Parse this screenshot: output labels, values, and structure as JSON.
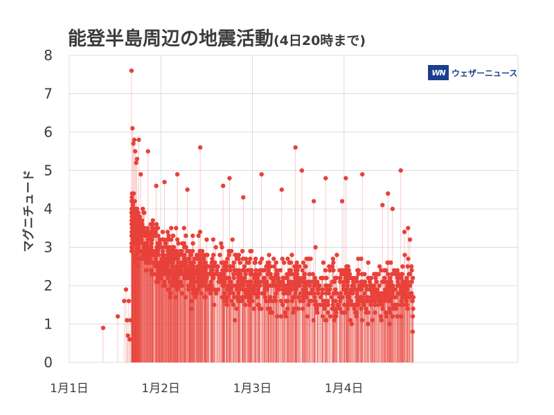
{
  "header": {
    "title": "能登半島周辺の地震活動",
    "subtitle": "(4日20時まで)"
  },
  "logo": {
    "mark": "WN",
    "text": "ウェザーニュース"
  },
  "chart_data": {
    "type": "scatter",
    "style": "stem",
    "title": "能登半島周辺の地震活動(4日20時まで)",
    "ylabel": "マグニチュード",
    "xlabel": "",
    "ylim": [
      0,
      8
    ],
    "yticks": [
      "0",
      "1",
      "2",
      "3",
      "4",
      "5",
      "6",
      "7",
      "8"
    ],
    "xlim": [
      0,
      4.9
    ],
    "xticks": [
      {
        "value": 0,
        "label": "1月1日"
      },
      {
        "value": 1,
        "label": "1月2日"
      },
      {
        "value": 2,
        "label": "1月3日"
      },
      {
        "value": 3,
        "label": "1月4日"
      }
    ],
    "grid": true,
    "color": "#e8413a",
    "x_unit": "days since 1月1日 0時",
    "notable_points": [
      {
        "x": 0.37,
        "y": 0.9
      },
      {
        "x": 0.53,
        "y": 1.2
      },
      {
        "x": 0.6,
        "y": 1.6
      },
      {
        "x": 0.62,
        "y": 1.9
      },
      {
        "x": 0.63,
        "y": 1.1
      },
      {
        "x": 0.64,
        "y": 0.7
      },
      {
        "x": 0.65,
        "y": 1.6
      },
      {
        "x": 0.66,
        "y": 0.6
      },
      {
        "x": 0.67,
        "y": 1.1
      },
      {
        "x": 0.68,
        "y": 7.6
      },
      {
        "x": 0.69,
        "y": 6.1
      },
      {
        "x": 0.7,
        "y": 5.7
      },
      {
        "x": 0.71,
        "y": 5.8
      },
      {
        "x": 0.72,
        "y": 5.5
      },
      {
        "x": 0.73,
        "y": 5.2
      },
      {
        "x": 0.74,
        "y": 5.3
      },
      {
        "x": 0.76,
        "y": 5.8
      },
      {
        "x": 0.78,
        "y": 4.9
      },
      {
        "x": 0.86,
        "y": 5.5
      },
      {
        "x": 0.95,
        "y": 4.6
      },
      {
        "x": 1.04,
        "y": 4.7
      },
      {
        "x": 1.18,
        "y": 4.9
      },
      {
        "x": 1.29,
        "y": 4.5
      },
      {
        "x": 1.43,
        "y": 5.6
      },
      {
        "x": 1.68,
        "y": 4.6
      },
      {
        "x": 1.75,
        "y": 4.8
      },
      {
        "x": 1.9,
        "y": 4.3
      },
      {
        "x": 2.1,
        "y": 4.9
      },
      {
        "x": 2.32,
        "y": 4.5
      },
      {
        "x": 2.47,
        "y": 5.6
      },
      {
        "x": 2.54,
        "y": 5.0
      },
      {
        "x": 2.67,
        "y": 4.2
      },
      {
        "x": 2.8,
        "y": 4.8
      },
      {
        "x": 2.98,
        "y": 4.2
      },
      {
        "x": 3.02,
        "y": 4.8
      },
      {
        "x": 3.2,
        "y": 4.9
      },
      {
        "x": 3.42,
        "y": 4.1
      },
      {
        "x": 3.48,
        "y": 4.4
      },
      {
        "x": 3.53,
        "y": 4.0
      },
      {
        "x": 3.62,
        "y": 5.0
      },
      {
        "x": 3.66,
        "y": 3.4
      },
      {
        "x": 3.7,
        "y": 3.5
      },
      {
        "x": 3.72,
        "y": 3.2
      },
      {
        "x": 3.74,
        "y": 2.4
      },
      {
        "x": 3.75,
        "y": 0.8
      }
    ],
    "series_profile": {
      "start_x": 0.68,
      "end_x": 3.76,
      "count": 1500,
      "median_by_day": [
        {
          "x": 0.7,
          "y": 3.6
        },
        {
          "x": 1.0,
          "y": 2.6
        },
        {
          "x": 2.0,
          "y": 2.1
        },
        {
          "x": 3.0,
          "y": 1.9
        },
        {
          "x": 3.76,
          "y": 1.9
        }
      ]
    }
  }
}
